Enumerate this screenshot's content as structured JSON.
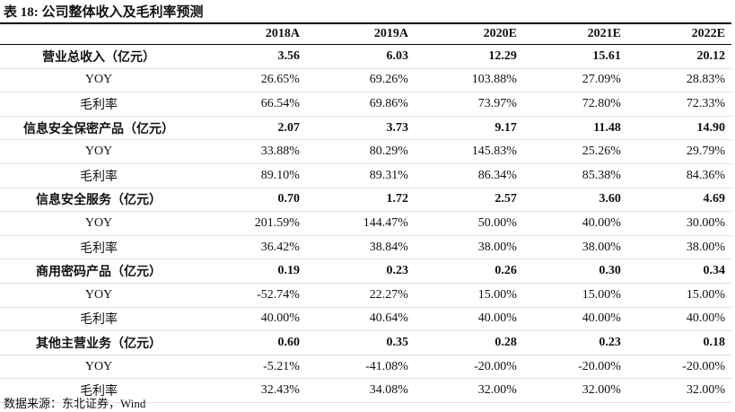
{
  "title": "表 18: 公司整体收入及毛利率预测",
  "table": {
    "header": [
      "",
      "2018A",
      "2019A",
      "2020E",
      "2021E",
      "2022E"
    ],
    "rows": [
      [
        "营业总收入（亿元）",
        "3.56",
        "6.03",
        "12.29",
        "15.61",
        "20.12"
      ],
      [
        "YOY",
        "26.65%",
        "69.26%",
        "103.88%",
        "27.09%",
        "28.83%"
      ],
      [
        "毛利率",
        "66.54%",
        "69.86%",
        "73.97%",
        "72.80%",
        "72.33%"
      ],
      [
        "信息安全保密产品（亿元）",
        "2.07",
        "3.73",
        "9.17",
        "11.48",
        "14.90"
      ],
      [
        "YOY",
        "33.88%",
        "80.29%",
        "145.83%",
        "25.26%",
        "29.79%"
      ],
      [
        "毛利率",
        "89.10%",
        "89.31%",
        "86.34%",
        "85.38%",
        "84.36%"
      ],
      [
        "信息安全服务（亿元）",
        "0.70",
        "1.72",
        "2.57",
        "3.60",
        "4.69"
      ],
      [
        "YOY",
        "201.59%",
        "144.47%",
        "50.00%",
        "40.00%",
        "30.00%"
      ],
      [
        "毛利率",
        "36.42%",
        "38.84%",
        "38.00%",
        "38.00%",
        "38.00%"
      ],
      [
        "商用密码产品（亿元）",
        "0.19",
        "0.23",
        "0.26",
        "0.30",
        "0.34"
      ],
      [
        "YOY",
        "-52.74%",
        "22.27%",
        "15.00%",
        "15.00%",
        "15.00%"
      ],
      [
        "毛利率",
        "40.00%",
        "40.64%",
        "40.00%",
        "40.00%",
        "40.00%"
      ],
      [
        "其他主营业务（亿元）",
        "0.60",
        "0.35",
        "0.28",
        "0.23",
        "0.18"
      ],
      [
        "YOY",
        "-5.21%",
        "-41.08%",
        "-20.00%",
        "-20.00%",
        "-20.00%"
      ],
      [
        "毛利率",
        "32.43%",
        "34.08%",
        "32.00%",
        "32.00%",
        "32.00%"
      ]
    ]
  },
  "source": "数据来源：东北证券，Wind"
}
